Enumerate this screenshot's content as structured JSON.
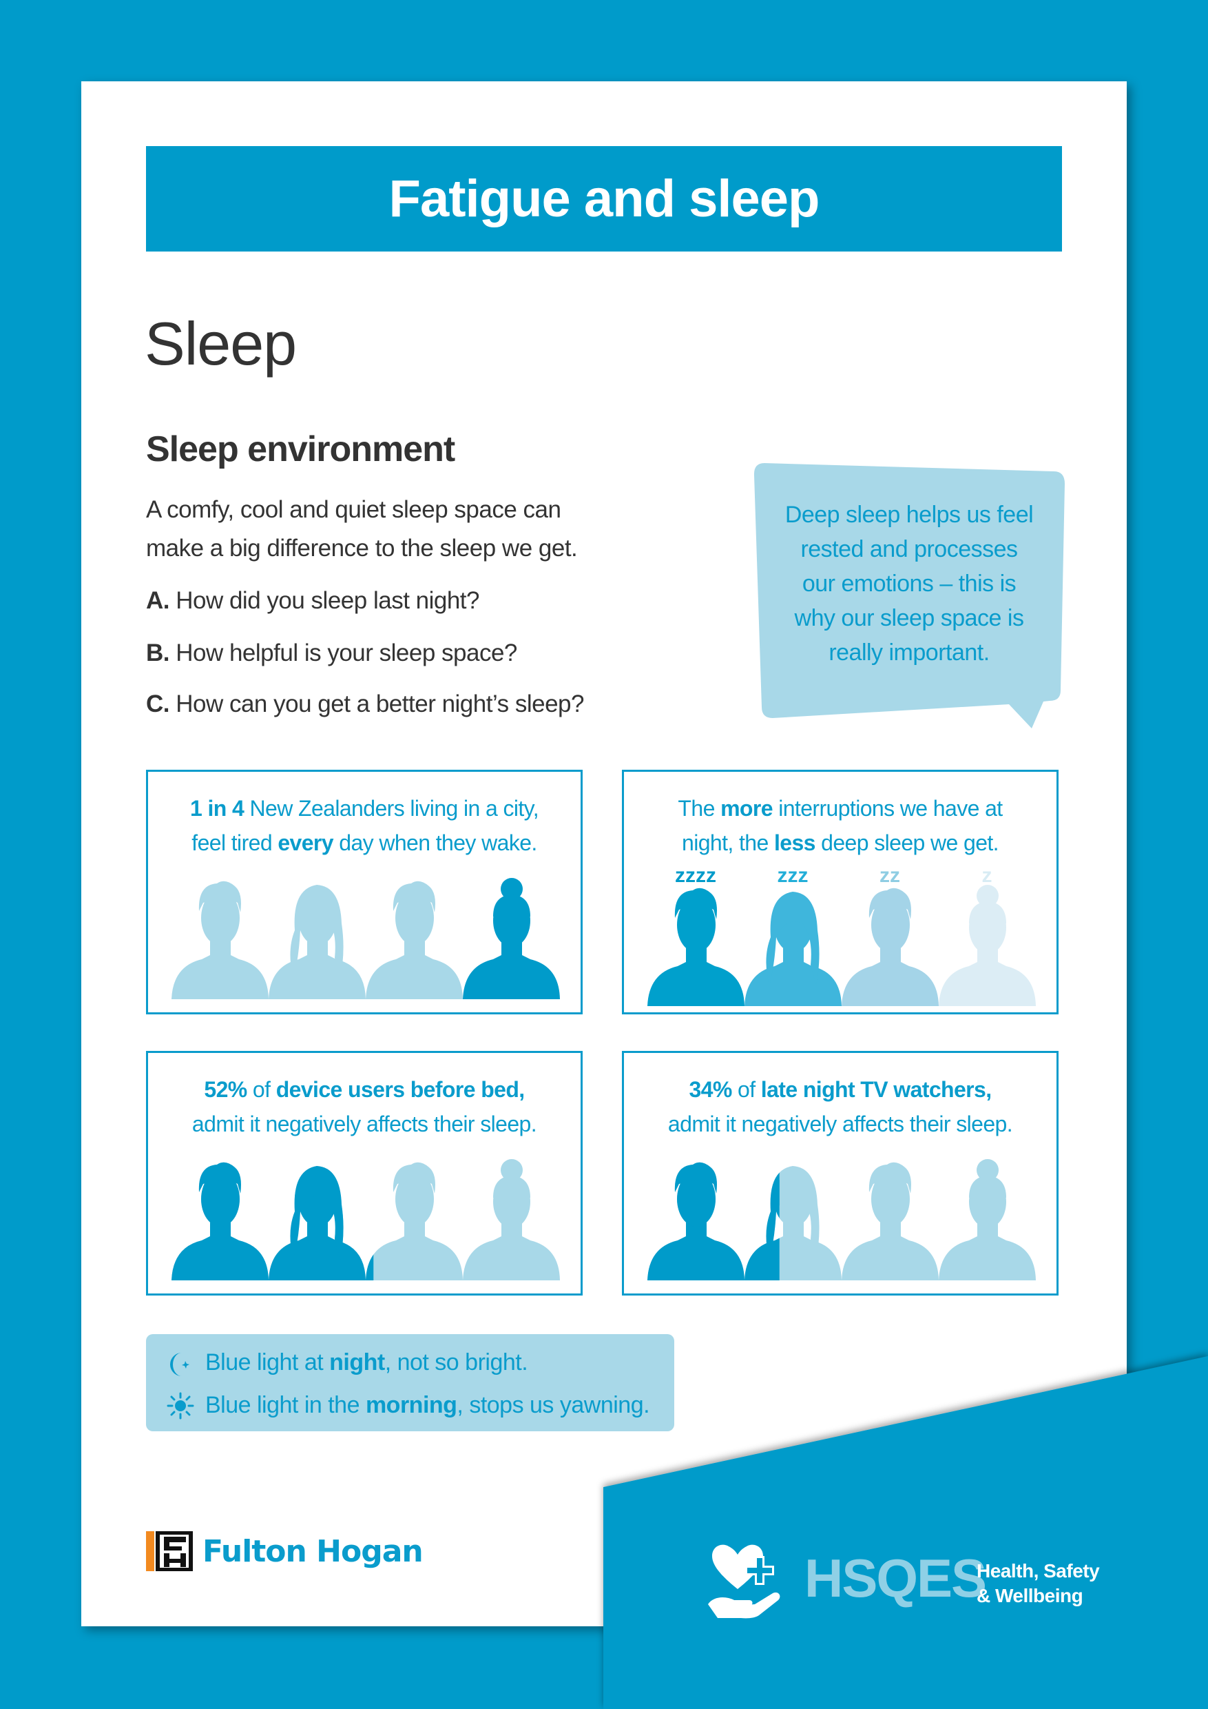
{
  "colors": {
    "brand_blue": "#009bca",
    "light_blue": "#a8d8e8",
    "text_dark": "#333333",
    "accent_orange": "#f28a20"
  },
  "title": "Fatigue and sleep",
  "heading": "Sleep",
  "section": {
    "title": "Sleep environment",
    "intro": [
      "A comfy, cool and quiet sleep space can",
      "make a big difference to the sleep we get."
    ],
    "questions": [
      {
        "letter": "A.",
        "text": " How did you sleep last night?"
      },
      {
        "letter": "B.",
        "text": " How helpful is your sleep space?"
      },
      {
        "letter": "C.",
        "text": " How can you get a better night’s sleep?"
      }
    ]
  },
  "bubble": {
    "lines": [
      "Deep sleep helps us feel",
      "rested and processes",
      "our emotions – this is",
      "why our sleep space is",
      "really important."
    ]
  },
  "cards": [
    {
      "parts": [
        "1 in 4",
        " New Zealanders living in a city,",
        "feel tired ",
        "every",
        " day when they wake."
      ],
      "people": [
        {
          "type": "male",
          "color": "#a8d8e8"
        },
        {
          "type": "female",
          "color": "#a8d8e8"
        },
        {
          "type": "male",
          "color": "#a8d8e8"
        },
        {
          "type": "bun",
          "color": "#009bca"
        }
      ]
    },
    {
      "parts": [
        "The ",
        "more",
        " interruptions we have at",
        "night, the ",
        "less",
        " deep sleep we get."
      ],
      "zzz": [
        {
          "text": "zzzz",
          "color": "#009bca"
        },
        {
          "text": "zzz",
          "color": "#22aed8"
        },
        {
          "text": "zz",
          "color": "#8fcde3"
        },
        {
          "text": "z",
          "color": "#d8ecf4"
        }
      ],
      "people": [
        {
          "type": "male",
          "color": "#00a0cc"
        },
        {
          "type": "female",
          "color": "#3fb6dc"
        },
        {
          "type": "male",
          "color": "#a4d4e8"
        },
        {
          "type": "bun",
          "color": "#dcedf5"
        }
      ]
    },
    {
      "parts": [
        "52%",
        " of ",
        "device users before bed,",
        "admit it negatively affects their sleep."
      ],
      "percent": 52,
      "people": [
        {
          "type": "male"
        },
        {
          "type": "female"
        },
        {
          "type": "male"
        },
        {
          "type": "bun"
        }
      ]
    },
    {
      "parts": [
        "34%",
        " of ",
        "late night TV watchers,",
        "admit it negatively affects their sleep."
      ],
      "percent": 34,
      "people": [
        {
          "type": "male"
        },
        {
          "type": "female"
        },
        {
          "type": "male"
        },
        {
          "type": "bun"
        }
      ]
    }
  ],
  "tips": [
    {
      "icon": "moon-star-icon",
      "parts": [
        "Blue light at ",
        "night",
        ", not so bright."
      ]
    },
    {
      "icon": "sun-icon",
      "parts": [
        "Blue light in the ",
        "morning",
        ", stops us yawning."
      ]
    }
  ],
  "footer": {
    "company": "Fulton Hogan",
    "company_mark": "FH",
    "program": "HSQES",
    "program_sub": [
      "Health, Safety",
      "& Wellbeing"
    ]
  }
}
